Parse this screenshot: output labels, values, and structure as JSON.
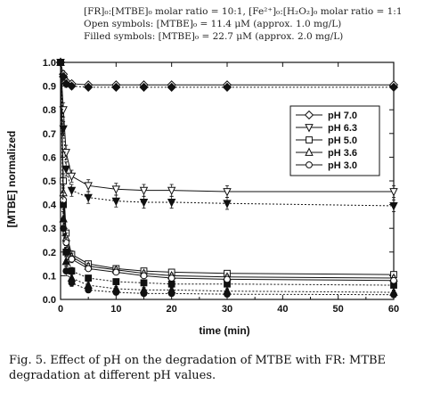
{
  "annotations": {
    "line1": "[FR]₀:[MTBE]₀ molar ratio = 10:1, [Fe²⁺]₀:[H₂O₂]₀ molar ratio = 1:1",
    "line2": "Open symbols: [MTBE]₀ = 11.4 μM (approx. 1.0 mg/L)",
    "line3": "Filled symbols: [MTBE]₀ = 22.7 μM (approx. 2.0 mg/L)"
  },
  "caption": "Fig. 5. Effect of pH on the degradation of MTBE with FR: MTBE degradation at different pH values.",
  "chart_data": {
    "type": "line",
    "xlabel": "time (min)",
    "ylabel": "[MTBE] normalized",
    "xlim": [
      0,
      60
    ],
    "ylim": [
      0,
      1.0
    ],
    "xticks": [
      0,
      10,
      20,
      30,
      40,
      50,
      60
    ],
    "yticks": [
      0.0,
      0.1,
      0.2,
      0.3,
      0.4,
      0.5,
      0.6,
      0.7,
      0.8,
      0.9,
      1.0
    ],
    "grid": false,
    "legend_position": "right",
    "legend": [
      {
        "label": "pH 7.0",
        "marker": "diamond"
      },
      {
        "label": "pH 6.3",
        "marker": "triangle-down"
      },
      {
        "label": "pH 5.0",
        "marker": "square"
      },
      {
        "label": "pH 3.6",
        "marker": "triangle-up"
      },
      {
        "label": "pH 3.0",
        "marker": "circle"
      }
    ],
    "x": [
      0,
      0.5,
      1,
      2,
      5,
      10,
      15,
      20,
      30,
      60
    ],
    "series": [
      {
        "ph": "7.0",
        "fill": "open",
        "marker": "diamond",
        "dash": false,
        "values": [
          1.0,
          0.95,
          0.92,
          0.91,
          0.905,
          0.905,
          0.905,
          0.905,
          0.905,
          0.905
        ],
        "errors": [
          0,
          0.015,
          0.015,
          0.012,
          0.01,
          0.01,
          0.01,
          0.01,
          0.01,
          0.01
        ]
      },
      {
        "ph": "7.0",
        "fill": "filled",
        "marker": "diamond",
        "dash": true,
        "values": [
          1.0,
          0.94,
          0.91,
          0.9,
          0.895,
          0.895,
          0.895,
          0.895,
          0.895,
          0.895
        ],
        "errors": [
          0,
          0.015,
          0.015,
          0.012,
          0.01,
          0.01,
          0.01,
          0.01,
          0.01,
          0.01
        ]
      },
      {
        "ph": "6.3",
        "fill": "open",
        "marker": "triangle-down",
        "dash": false,
        "values": [
          1.0,
          0.8,
          0.62,
          0.52,
          0.48,
          0.465,
          0.46,
          0.46,
          0.455,
          0.455
        ],
        "errors": [
          0,
          0.03,
          0.03,
          0.025,
          0.025,
          0.025,
          0.025,
          0.025,
          0.025,
          0.025
        ]
      },
      {
        "ph": "6.3",
        "fill": "filled",
        "marker": "triangle-down",
        "dash": true,
        "values": [
          1.0,
          0.72,
          0.55,
          0.46,
          0.43,
          0.415,
          0.41,
          0.41,
          0.405,
          0.395
        ],
        "errors": [
          0,
          0.03,
          0.03,
          0.025,
          0.025,
          0.025,
          0.025,
          0.025,
          0.025,
          0.025
        ]
      },
      {
        "ph": "5.0",
        "fill": "open",
        "marker": "square",
        "dash": false,
        "values": [
          1.0,
          0.5,
          0.28,
          0.19,
          0.15,
          0.13,
          0.12,
          0.115,
          0.11,
          0.105
        ],
        "errors": [
          0,
          0.03,
          0.02,
          0.015,
          0.012,
          0.01,
          0.01,
          0.01,
          0.01,
          0.01
        ]
      },
      {
        "ph": "5.0",
        "fill": "filled",
        "marker": "square",
        "dash": true,
        "values": [
          1.0,
          0.4,
          0.2,
          0.12,
          0.09,
          0.075,
          0.07,
          0.065,
          0.065,
          0.06
        ],
        "errors": [
          0,
          0.03,
          0.02,
          0.015,
          0.012,
          0.01,
          0.01,
          0.01,
          0.01,
          0.01
        ]
      },
      {
        "ph": "3.6",
        "fill": "open",
        "marker": "triangle-up",
        "dash": false,
        "values": [
          1.0,
          0.45,
          0.26,
          0.18,
          0.14,
          0.125,
          0.11,
          0.1,
          0.095,
          0.09
        ],
        "errors": [
          0,
          0.03,
          0.02,
          0.015,
          0.012,
          0.01,
          0.01,
          0.01,
          0.01,
          0.01
        ]
      },
      {
        "ph": "3.6",
        "fill": "filled",
        "marker": "triangle-up",
        "dash": true,
        "values": [
          1.0,
          0.34,
          0.16,
          0.09,
          0.06,
          0.045,
          0.04,
          0.04,
          0.035,
          0.03
        ],
        "errors": [
          0,
          0.03,
          0.02,
          0.015,
          0.012,
          0.01,
          0.01,
          0.01,
          0.01,
          0.01
        ]
      },
      {
        "ph": "3.0",
        "fill": "open",
        "marker": "circle",
        "dash": false,
        "values": [
          1.0,
          0.42,
          0.24,
          0.17,
          0.13,
          0.115,
          0.1,
          0.09,
          0.085,
          0.08
        ],
        "errors": [
          0,
          0.03,
          0.02,
          0.015,
          0.012,
          0.01,
          0.01,
          0.01,
          0.01,
          0.01
        ]
      },
      {
        "ph": "3.0",
        "fill": "filled",
        "marker": "circle",
        "dash": true,
        "values": [
          1.0,
          0.3,
          0.12,
          0.07,
          0.04,
          0.03,
          0.025,
          0.025,
          0.022,
          0.02
        ],
        "errors": [
          0,
          0.03,
          0.02,
          0.015,
          0.012,
          0.01,
          0.01,
          0.01,
          0.01,
          0.01
        ]
      }
    ]
  }
}
